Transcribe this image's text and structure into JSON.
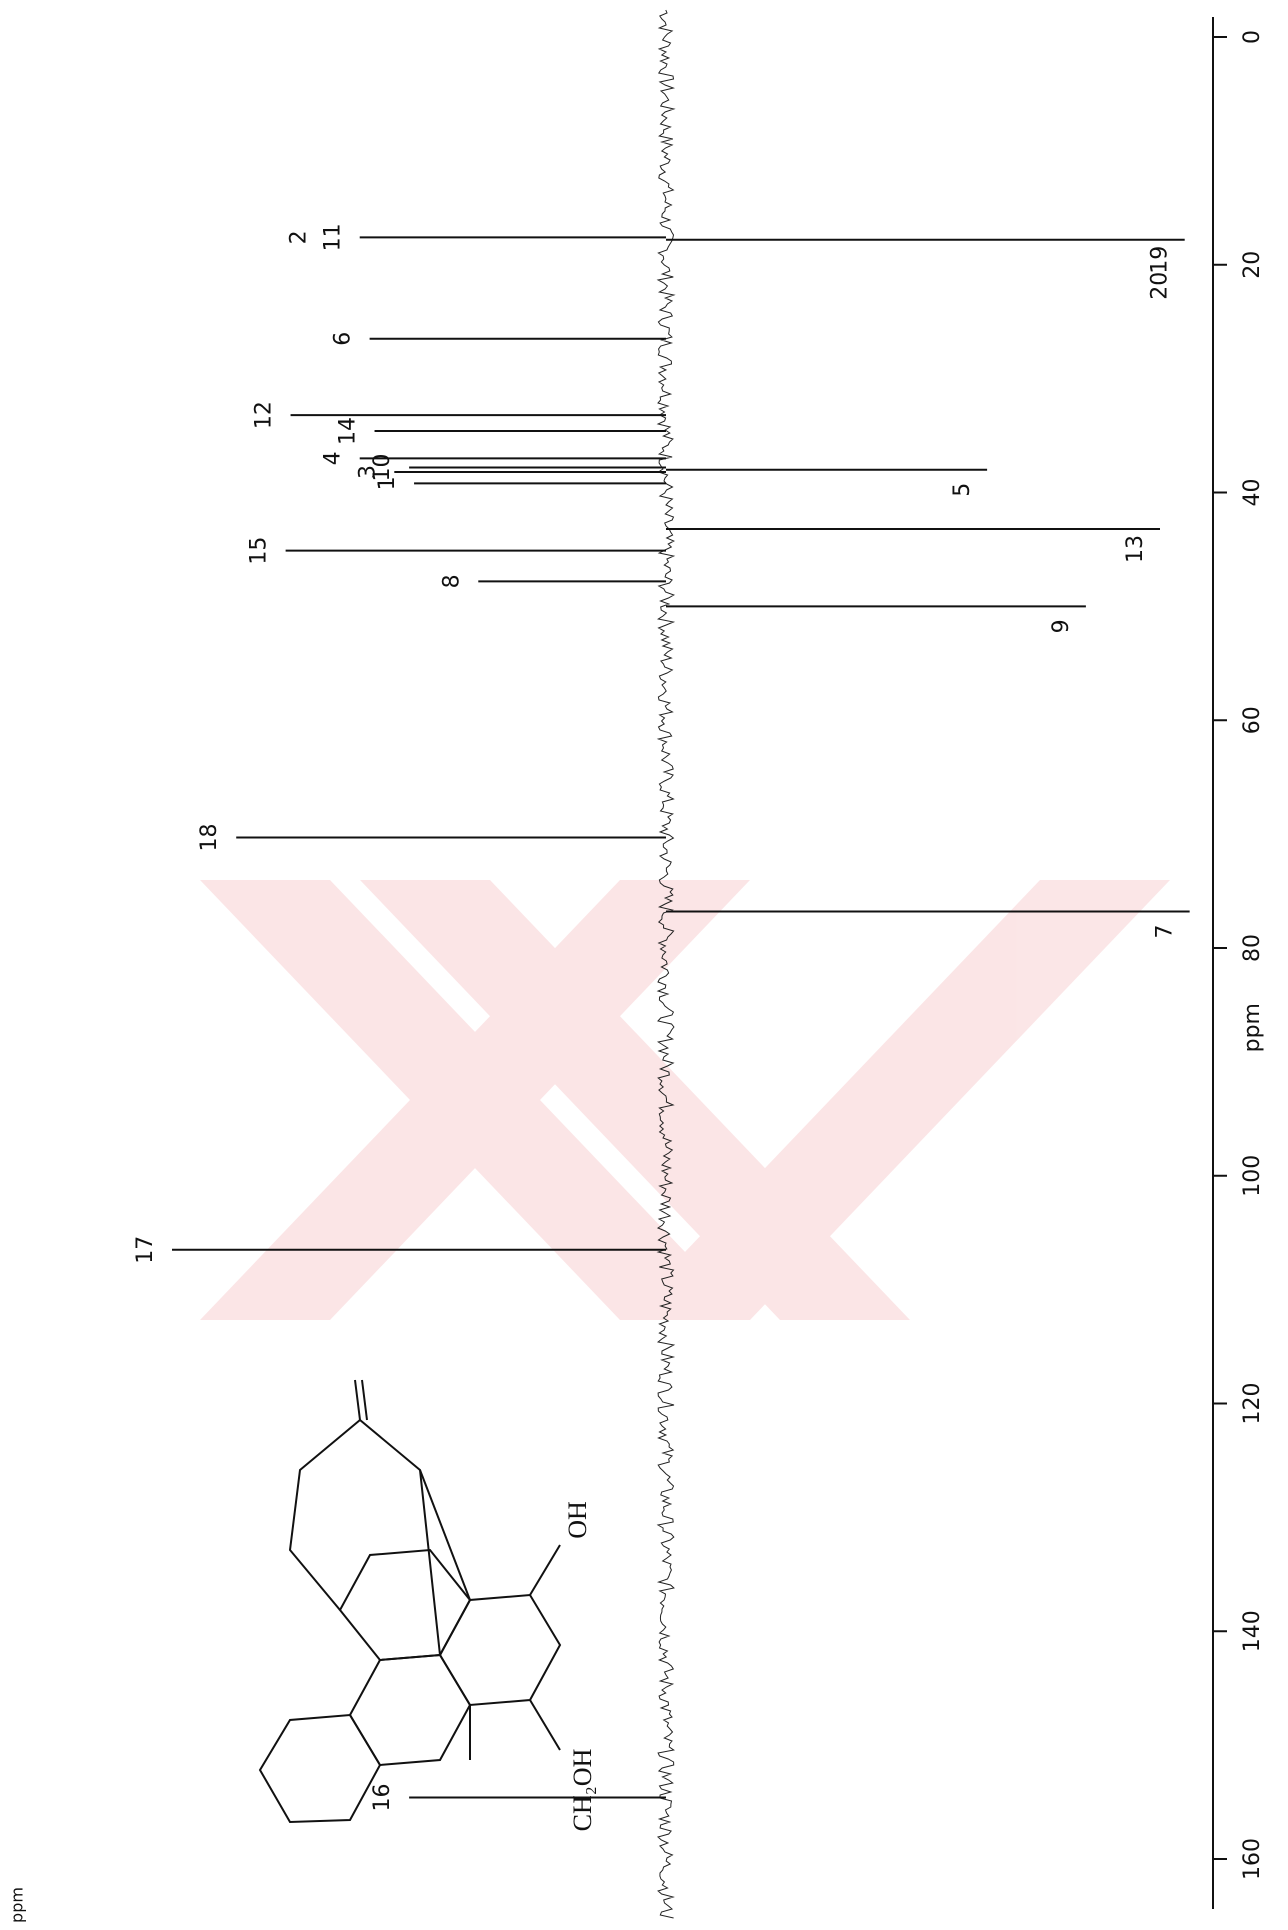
{
  "chart_data": {
    "type": "spectrum",
    "x_label": "ppm",
    "xlim": [
      0,
      160
    ],
    "xticks": [
      0,
      20,
      40,
      60,
      80,
      100,
      120,
      140,
      160
    ],
    "intensity_lim": [
      -110,
      105
    ],
    "color": "#111111",
    "peaks": [
      {
        "labels": [
          "2",
          "11"
        ],
        "ppm": 17.6,
        "height": 62
      },
      {
        "labels": [
          "19",
          "20"
        ],
        "ppm": 17.8,
        "height": -105
      },
      {
        "labels": [
          "6"
        ],
        "ppm": 26.5,
        "height": 60
      },
      {
        "labels": [
          "12"
        ],
        "ppm": 33.2,
        "height": 76
      },
      {
        "labels": [
          "14"
        ],
        "ppm": 34.6,
        "height": 59
      },
      {
        "labels": [
          "4"
        ],
        "ppm": 37.0,
        "height": 62
      },
      {
        "labels": [
          "10"
        ],
        "ppm": 37.8,
        "height": 52
      },
      {
        "labels": [
          "3"
        ],
        "ppm": 38.2,
        "height": 55
      },
      {
        "labels": [
          "1"
        ],
        "ppm": 39.2,
        "height": 51
      },
      {
        "labels": [
          "5"
        ],
        "ppm": 38.0,
        "height": -65
      },
      {
        "labels": [
          "13"
        ],
        "ppm": 43.2,
        "height": -100
      },
      {
        "labels": [
          "15"
        ],
        "ppm": 45.1,
        "height": 77
      },
      {
        "labels": [
          "8"
        ],
        "ppm": 47.8,
        "height": 38
      },
      {
        "labels": [
          "9"
        ],
        "ppm": 50.0,
        "height": -85
      },
      {
        "labels": [
          "18"
        ],
        "ppm": 70.3,
        "height": 87
      },
      {
        "labels": [
          "7"
        ],
        "ppm": 76.8,
        "height": -106
      },
      {
        "labels": [
          "17"
        ],
        "ppm": 106.5,
        "height": 100
      },
      {
        "labels": [
          "16"
        ],
        "ppm": 154.6,
        "height": 52
      }
    ]
  },
  "structure": {
    "labels": [
      "OH",
      "CH₂OH"
    ]
  }
}
